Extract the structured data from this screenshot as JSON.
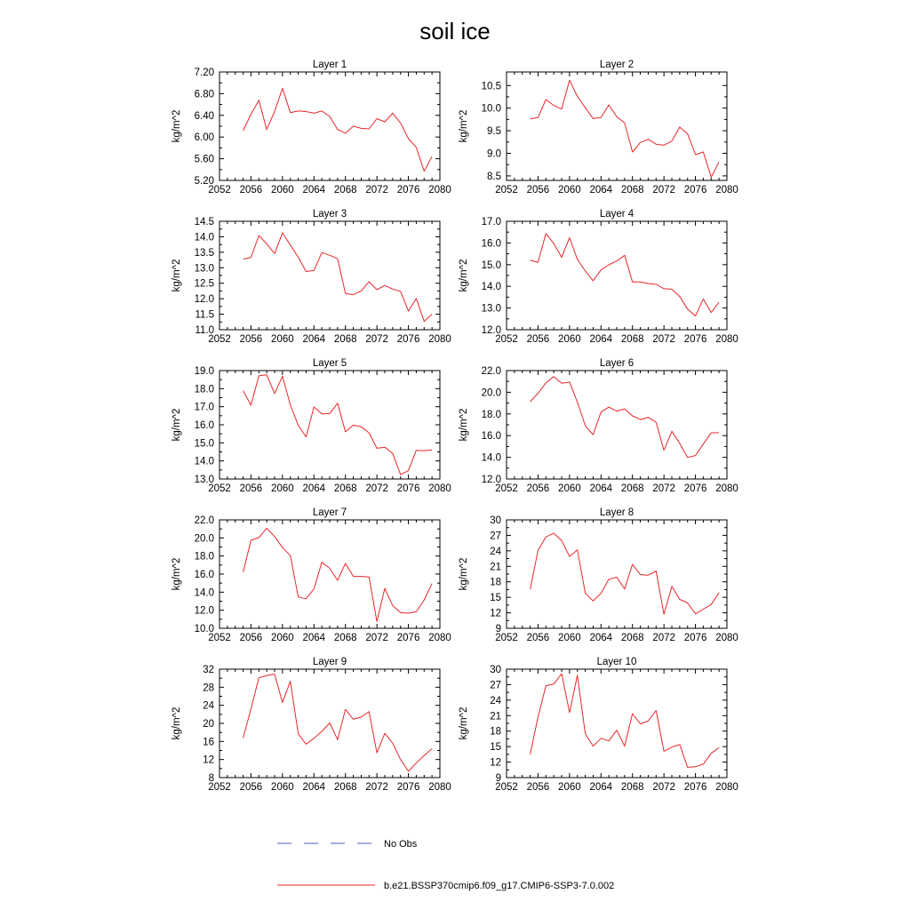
{
  "title": "soil ice",
  "legend": {
    "obs_label": "No Obs",
    "obs_color": "#4a5ac8",
    "model_label": "b.e21.BSSP370cmip6.f09_g17.CMIP6-SSP3-7.0.002",
    "model_color": "#e8262a"
  },
  "chart_data": [
    {
      "type": "line",
      "title": "Layer 1",
      "xlabel": "",
      "ylabel": "kg/m^2",
      "xlim": [
        2052,
        2080
      ],
      "xticks": [
        2052,
        2056,
        2060,
        2064,
        2068,
        2072,
        2076,
        2080
      ],
      "ylim": [
        5.2,
        7.2
      ],
      "yticks": [
        "7.20",
        "6.80",
        "6.40",
        "6.00",
        "5.60",
        "5.20"
      ],
      "series": [
        {
          "x": [
            2055,
            2056,
            2057,
            2058,
            2059,
            2060,
            2061,
            2062,
            2063,
            2064,
            2065,
            2066,
            2067,
            2068,
            2069,
            2070,
            2071,
            2072,
            2073,
            2074,
            2075,
            2076,
            2077,
            2078,
            2079
          ],
          "values": [
            6.12,
            6.42,
            6.68,
            6.14,
            6.47,
            6.9,
            6.45,
            6.48,
            6.47,
            6.44,
            6.48,
            6.38,
            6.14,
            6.07,
            6.2,
            6.16,
            6.15,
            6.34,
            6.28,
            6.44,
            6.26,
            5.97,
            5.81,
            5.37,
            5.64
          ]
        }
      ]
    },
    {
      "type": "line",
      "title": "Layer 2",
      "xlabel": "",
      "ylabel": "kg/m^2",
      "xlim": [
        2052,
        2080
      ],
      "xticks": [
        2052,
        2056,
        2060,
        2064,
        2068,
        2072,
        2076,
        2080
      ],
      "ylim": [
        8.4,
        10.8
      ],
      "yticks": [
        "10.5",
        "10.0",
        "9.5",
        "9.0",
        "8.5"
      ],
      "series": [
        {
          "x": [
            2055,
            2056,
            2057,
            2058,
            2059,
            2060,
            2061,
            2062,
            2063,
            2064,
            2065,
            2066,
            2067,
            2068,
            2069,
            2070,
            2071,
            2072,
            2073,
            2074,
            2075,
            2076,
            2077,
            2078,
            2079
          ],
          "values": [
            9.76,
            9.79,
            10.19,
            10.06,
            9.98,
            10.62,
            10.26,
            10.01,
            9.77,
            9.79,
            10.07,
            9.81,
            9.67,
            9.03,
            9.24,
            9.31,
            9.2,
            9.18,
            9.27,
            9.58,
            9.43,
            8.97,
            9.03,
            8.47,
            8.81
          ]
        }
      ]
    },
    {
      "type": "line",
      "title": "Layer 3",
      "xlabel": "",
      "ylabel": "kg/m^2",
      "xlim": [
        2052,
        2080
      ],
      "xticks": [
        2052,
        2056,
        2060,
        2064,
        2068,
        2072,
        2076,
        2080
      ],
      "ylim": [
        11.0,
        14.5
      ],
      "yticks": [
        "14.5",
        "14.0",
        "13.5",
        "13.0",
        "12.5",
        "12.0",
        "11.5",
        "11.0"
      ],
      "series": [
        {
          "x": [
            2055,
            2056,
            2057,
            2058,
            2059,
            2060,
            2061,
            2062,
            2063,
            2064,
            2065,
            2066,
            2067,
            2068,
            2069,
            2070,
            2071,
            2072,
            2073,
            2074,
            2075,
            2076,
            2077,
            2078,
            2079
          ],
          "values": [
            13.28,
            13.33,
            14.04,
            13.77,
            13.46,
            14.13,
            13.73,
            13.34,
            12.88,
            12.91,
            13.49,
            13.4,
            13.29,
            12.17,
            12.13,
            12.25,
            12.55,
            12.29,
            12.43,
            12.31,
            12.24,
            11.6,
            12.01,
            11.27,
            11.5
          ]
        }
      ]
    },
    {
      "type": "line",
      "title": "Layer 4",
      "xlabel": "",
      "ylabel": "kg/m^2",
      "xlim": [
        2052,
        2080
      ],
      "xticks": [
        2052,
        2056,
        2060,
        2064,
        2068,
        2072,
        2076,
        2080
      ],
      "ylim": [
        12.0,
        17.0
      ],
      "yticks": [
        "17.0",
        "16.0",
        "15.0",
        "14.0",
        "13.0",
        "12.0"
      ],
      "series": [
        {
          "x": [
            2055,
            2056,
            2057,
            2058,
            2059,
            2060,
            2061,
            2062,
            2063,
            2064,
            2065,
            2066,
            2067,
            2068,
            2069,
            2070,
            2071,
            2072,
            2073,
            2074,
            2075,
            2076,
            2077,
            2078,
            2079
          ],
          "values": [
            15.2,
            15.11,
            16.43,
            15.98,
            15.34,
            16.24,
            15.24,
            14.71,
            14.26,
            14.76,
            14.99,
            15.17,
            15.43,
            14.2,
            14.2,
            14.13,
            14.09,
            13.89,
            13.87,
            13.53,
            12.95,
            12.63,
            13.42,
            12.79,
            13.27
          ]
        }
      ]
    },
    {
      "type": "line",
      "title": "Layer 5",
      "xlabel": "",
      "ylabel": "kg/m^2",
      "xlim": [
        2052,
        2080
      ],
      "xticks": [
        2052,
        2056,
        2060,
        2064,
        2068,
        2072,
        2076,
        2080
      ],
      "ylim": [
        13.0,
        19.0
      ],
      "yticks": [
        "19.0",
        "18.0",
        "17.0",
        "16.0",
        "15.0",
        "14.0",
        "13.0"
      ],
      "series": [
        {
          "x": [
            2055,
            2056,
            2057,
            2058,
            2059,
            2060,
            2061,
            2062,
            2063,
            2064,
            2065,
            2066,
            2067,
            2068,
            2069,
            2070,
            2071,
            2072,
            2073,
            2074,
            2075,
            2076,
            2077,
            2078,
            2079
          ],
          "values": [
            17.89,
            17.08,
            18.71,
            18.77,
            17.73,
            18.69,
            17.09,
            15.98,
            15.33,
            16.99,
            16.6,
            16.62,
            17.19,
            15.61,
            15.98,
            15.89,
            15.55,
            14.7,
            14.76,
            14.41,
            13.24,
            13.46,
            14.59,
            14.56,
            14.62
          ]
        }
      ]
    },
    {
      "type": "line",
      "title": "Layer 6",
      "xlabel": "",
      "ylabel": "kg/m^2",
      "xlim": [
        2052,
        2080
      ],
      "xticks": [
        2052,
        2056,
        2060,
        2064,
        2068,
        2072,
        2076,
        2080
      ],
      "ylim": [
        12.0,
        22.0
      ],
      "yticks": [
        "22.0",
        "20.0",
        "18.0",
        "16.0",
        "14.0",
        "12.0"
      ],
      "series": [
        {
          "x": [
            2055,
            2056,
            2057,
            2058,
            2059,
            2060,
            2061,
            2062,
            2063,
            2064,
            2065,
            2066,
            2067,
            2068,
            2069,
            2070,
            2071,
            2072,
            2073,
            2074,
            2075,
            2076,
            2077,
            2078,
            2079
          ],
          "values": [
            19.12,
            19.91,
            20.86,
            21.44,
            20.83,
            20.94,
            19.1,
            16.93,
            16.07,
            18.17,
            18.63,
            18.26,
            18.47,
            17.82,
            17.48,
            17.69,
            17.23,
            14.65,
            16.4,
            15.28,
            13.99,
            14.16,
            15.22,
            16.25,
            16.27
          ]
        }
      ]
    },
    {
      "type": "line",
      "title": "Layer 7",
      "xlabel": "",
      "ylabel": "kg/m^2",
      "xlim": [
        2052,
        2080
      ],
      "xticks": [
        2052,
        2056,
        2060,
        2064,
        2068,
        2072,
        2076,
        2080
      ],
      "ylim": [
        10.0,
        22.0
      ],
      "yticks": [
        "22.0",
        "20.0",
        "18.0",
        "16.0",
        "14.0",
        "12.0",
        "10.0"
      ],
      "series": [
        {
          "x": [
            2055,
            2056,
            2057,
            2058,
            2059,
            2060,
            2061,
            2062,
            2063,
            2064,
            2065,
            2066,
            2067,
            2068,
            2069,
            2070,
            2071,
            2072,
            2073,
            2074,
            2075,
            2076,
            2077,
            2078,
            2079
          ],
          "values": [
            16.21,
            19.74,
            20.04,
            21.08,
            20.16,
            18.93,
            18.05,
            13.47,
            13.27,
            14.36,
            17.3,
            16.65,
            15.3,
            17.18,
            15.74,
            15.74,
            15.68,
            10.75,
            14.43,
            12.52,
            11.73,
            11.67,
            11.83,
            13.14,
            14.95
          ]
        }
      ]
    },
    {
      "type": "line",
      "title": "Layer 8",
      "xlabel": "",
      "ylabel": "kg/m^2",
      "xlim": [
        2052,
        2080
      ],
      "xticks": [
        2052,
        2056,
        2060,
        2064,
        2068,
        2072,
        2076,
        2080
      ],
      "ylim": [
        9,
        30
      ],
      "yticks": [
        "30",
        "27",
        "24",
        "21",
        "18",
        "15",
        "12",
        "9"
      ],
      "series": [
        {
          "x": [
            2055,
            2056,
            2057,
            2058,
            2059,
            2060,
            2061,
            2062,
            2063,
            2064,
            2065,
            2066,
            2067,
            2068,
            2069,
            2070,
            2071,
            2072,
            2073,
            2074,
            2075,
            2076,
            2077,
            2078,
            2079
          ],
          "values": [
            16.5,
            24.1,
            26.7,
            27.4,
            26.0,
            22.9,
            24.2,
            15.8,
            14.3,
            15.8,
            18.5,
            18.9,
            16.6,
            21.4,
            19.4,
            19.3,
            20.1,
            11.7,
            17.1,
            14.6,
            13.9,
            11.8,
            12.7,
            13.6,
            15.9
          ]
        }
      ]
    },
    {
      "type": "line",
      "title": "Layer 9",
      "xlabel": "",
      "ylabel": "kg/m^2",
      "xlim": [
        2052,
        2080
      ],
      "xticks": [
        2052,
        2056,
        2060,
        2064,
        2068,
        2072,
        2076,
        2080
      ],
      "ylim": [
        8,
        32
      ],
      "yticks": [
        "32",
        "28",
        "24",
        "20",
        "16",
        "12",
        "8"
      ],
      "series": [
        {
          "x": [
            2055,
            2056,
            2057,
            2058,
            2059,
            2060,
            2061,
            2062,
            2063,
            2064,
            2065,
            2066,
            2067,
            2068,
            2069,
            2070,
            2071,
            2072,
            2073,
            2074,
            2075,
            2076,
            2077,
            2078,
            2079
          ],
          "values": [
            16.8,
            23.2,
            30.1,
            30.6,
            30.9,
            24.6,
            29.3,
            17.7,
            15.4,
            16.7,
            18.2,
            20.1,
            16.4,
            23.1,
            20.9,
            21.4,
            22.6,
            13.5,
            17.8,
            15.6,
            12.0,
            9.4,
            11.2,
            12.9,
            14.4
          ]
        }
      ]
    },
    {
      "type": "line",
      "title": "Layer 10",
      "xlabel": "",
      "ylabel": "kg/m^2",
      "xlim": [
        2052,
        2080
      ],
      "xticks": [
        2052,
        2056,
        2060,
        2064,
        2068,
        2072,
        2076,
        2080
      ],
      "ylim": [
        9,
        30
      ],
      "yticks": [
        "30",
        "27",
        "24",
        "21",
        "18",
        "15",
        "12",
        "9"
      ],
      "series": [
        {
          "x": [
            2055,
            2056,
            2057,
            2058,
            2059,
            2060,
            2061,
            2062,
            2063,
            2064,
            2065,
            2066,
            2067,
            2068,
            2069,
            2070,
            2071,
            2072,
            2073,
            2074,
            2075,
            2076,
            2077,
            2078,
            2079
          ],
          "values": [
            13.5,
            20.7,
            26.8,
            27.1,
            29.1,
            21.6,
            28.8,
            17.5,
            15.1,
            16.6,
            16.1,
            18.2,
            15.1,
            21.4,
            19.4,
            20.0,
            22.0,
            14.1,
            14.9,
            15.4,
            11.0,
            11.1,
            11.6,
            13.7,
            14.8
          ]
        }
      ]
    }
  ]
}
